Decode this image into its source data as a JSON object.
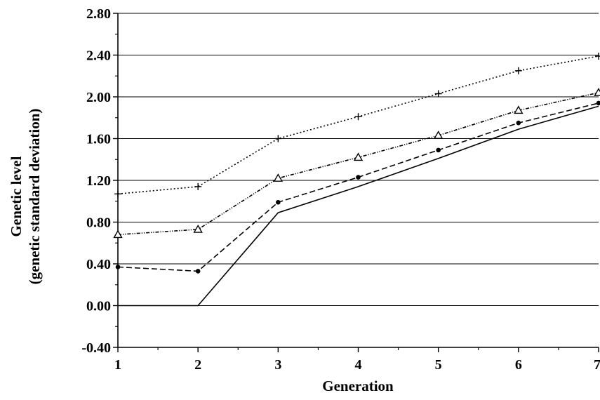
{
  "chart_data": {
    "type": "line",
    "title": "",
    "xlabel": "Generation",
    "ylabel_line1": "Genetic level",
    "ylabel_line2": "(genetic  standard  deviation)",
    "x": [
      1,
      2,
      3,
      4,
      5,
      6,
      7
    ],
    "xlim": [
      1,
      7
    ],
    "ylim": [
      -0.4,
      2.8
    ],
    "y_ticks": [
      -0.4,
      0.0,
      0.4,
      0.8,
      1.2,
      1.6,
      2.0,
      2.4,
      2.8
    ],
    "y_tick_labels": [
      "-0.40",
      "0.00",
      "0.40",
      "0.80",
      "1.20",
      "1.60",
      "2.00",
      "2.40",
      "2.80"
    ],
    "x_tick_labels": [
      "1",
      "2",
      "3",
      "4",
      "5",
      "6",
      "7"
    ],
    "grid": "horizontal",
    "legend": "none",
    "series": [
      {
        "style": "solid",
        "marker": "none",
        "values": [
          0.0,
          0.0,
          0.89,
          1.14,
          1.41,
          1.69,
          1.91
        ]
      },
      {
        "style": "dashed",
        "marker": "dot",
        "values": [
          0.37,
          0.33,
          0.99,
          1.23,
          1.49,
          1.75,
          1.94
        ]
      },
      {
        "style": "dash-dot",
        "marker": "triangle",
        "values": [
          0.68,
          0.73,
          1.22,
          1.42,
          1.63,
          1.87,
          2.04
        ]
      },
      {
        "style": "dotted",
        "marker": "plus",
        "values": [
          1.07,
          1.14,
          1.6,
          1.81,
          2.03,
          2.25,
          2.39
        ]
      }
    ]
  }
}
